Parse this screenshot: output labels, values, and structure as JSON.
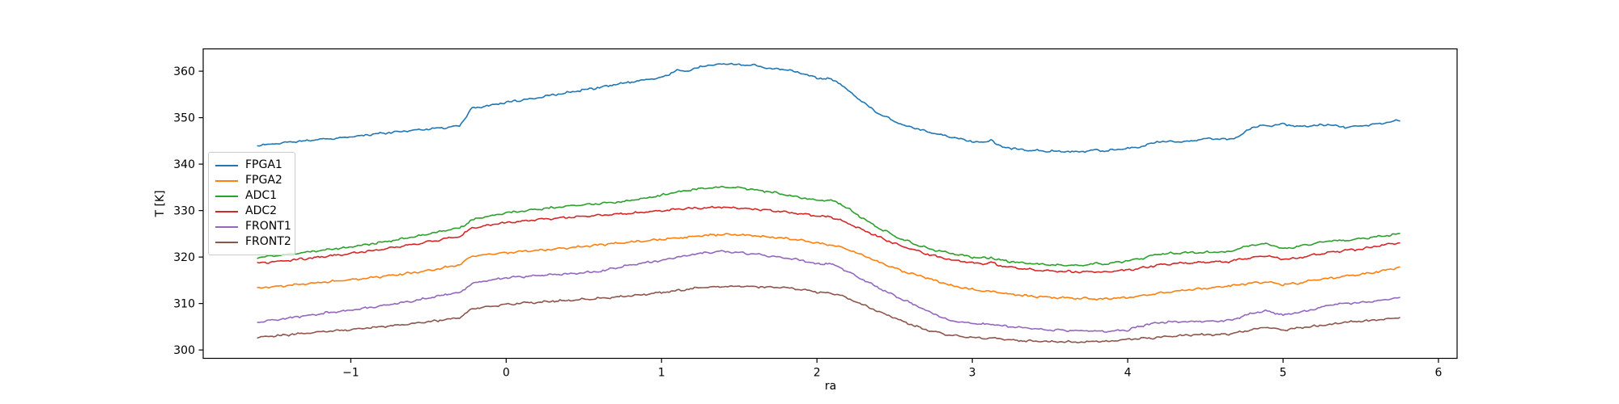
{
  "figure": {
    "background": "#ffffff"
  },
  "chart_data": {
    "type": "line",
    "title": "",
    "xlabel": "ra",
    "ylabel": "T [K]",
    "xlim": [
      -1.95,
      6.12
    ],
    "ylim": [
      298.2,
      364.8
    ],
    "xticks": [
      -1,
      0,
      1,
      2,
      3,
      4,
      5,
      6
    ],
    "yticks": [
      300,
      310,
      320,
      330,
      340,
      350,
      360
    ],
    "grid": false,
    "legend_position": "upper-left-inside",
    "noise_amplitude": 0.13,
    "x": [
      -1.6,
      -1.4,
      -1.2,
      -1.0,
      -0.8,
      -0.6,
      -0.45,
      -0.38,
      -0.3,
      -0.22,
      -0.1,
      0,
      0.15,
      0.3,
      0.45,
      0.6,
      0.75,
      0.9,
      1.0,
      1.1,
      1.15,
      1.2,
      1.3,
      1.4,
      1.5,
      1.6,
      1.7,
      1.8,
      1.9,
      2.0,
      2.08,
      2.15,
      2.25,
      2.4,
      2.55,
      2.7,
      2.85,
      3.0,
      3.08,
      3.12,
      3.17,
      3.3,
      3.5,
      3.7,
      3.8,
      3.85,
      4.0,
      4.1,
      4.2,
      4.35,
      4.5,
      4.65,
      4.72,
      4.8,
      4.9,
      5.0,
      5.1,
      5.2,
      5.3,
      5.4,
      5.5,
      5.6,
      5.75
    ],
    "series": [
      {
        "name": "FPGA1",
        "color": "#1f77b4",
        "values": [
          344.0,
          344.7,
          345.3,
          345.9,
          346.6,
          347.3,
          347.7,
          347.9,
          348.3,
          352.0,
          352.7,
          353.3,
          354.0,
          354.9,
          355.7,
          356.5,
          357.4,
          358.2,
          358.6,
          360.2,
          359.9,
          360.5,
          361.3,
          361.6,
          361.4,
          361.2,
          360.6,
          360.3,
          359.6,
          358.5,
          358.4,
          357.3,
          354.5,
          350.8,
          348.4,
          347.1,
          345.9,
          344.9,
          344.6,
          345.3,
          343.9,
          343.1,
          342.8,
          342.6,
          343.2,
          342.8,
          343.4,
          343.9,
          344.9,
          344.7,
          345.5,
          345.3,
          346.0,
          348.0,
          348.3,
          348.6,
          348.1,
          348.3,
          348.5,
          347.9,
          348.2,
          348.6,
          349.5
        ]
      },
      {
        "name": "FPGA2",
        "color": "#ff7f0e",
        "values": [
          313.3,
          313.9,
          314.5,
          315.1,
          315.8,
          316.6,
          317.4,
          317.9,
          318.3,
          320.2,
          320.6,
          320.9,
          321.3,
          321.7,
          322.1,
          322.6,
          323.1,
          323.5,
          323.8,
          324.1,
          324.2,
          324.4,
          324.7,
          324.9,
          324.8,
          324.6,
          324.3,
          324.0,
          323.6,
          323.0,
          322.6,
          322.2,
          321.0,
          318.9,
          317.0,
          315.6,
          314.0,
          313.0,
          312.7,
          312.6,
          312.4,
          311.8,
          311.3,
          311.1,
          311.0,
          311.0,
          311.3,
          311.7,
          312.2,
          312.8,
          313.3,
          313.8,
          314.1,
          314.4,
          314.7,
          314.1,
          314.4,
          315.0,
          315.4,
          315.9,
          316.3,
          316.8,
          317.8
        ]
      },
      {
        "name": "ADC1",
        "color": "#2ca02c",
        "values": [
          319.8,
          320.6,
          321.4,
          322.2,
          323.2,
          324.3,
          325.3,
          325.8,
          326.2,
          328.0,
          328.9,
          329.5,
          330.1,
          330.6,
          331.1,
          331.5,
          331.9,
          332.7,
          333.3,
          334.0,
          334.2,
          334.6,
          334.9,
          335.1,
          334.9,
          334.5,
          334.0,
          333.4,
          332.8,
          332.2,
          332.3,
          331.5,
          329.3,
          326.2,
          323.8,
          322.0,
          320.9,
          320.0,
          319.8,
          319.9,
          319.4,
          318.8,
          318.3,
          318.2,
          318.7,
          318.4,
          319.2,
          319.8,
          320.7,
          320.9,
          321.0,
          321.1,
          322.0,
          322.5,
          322.9,
          321.8,
          322.3,
          322.9,
          323.5,
          323.5,
          324.0,
          324.3,
          325.0
        ]
      },
      {
        "name": "ADC2",
        "color": "#d62728",
        "values": [
          318.6,
          319.3,
          320.0,
          320.8,
          321.7,
          322.7,
          323.6,
          324.0,
          324.4,
          326.2,
          326.9,
          327.4,
          327.9,
          328.3,
          328.7,
          329.0,
          329.3,
          329.7,
          330.0,
          330.3,
          330.4,
          330.5,
          330.6,
          330.7,
          330.5,
          330.3,
          330.0,
          329.7,
          329.3,
          328.9,
          328.7,
          328.0,
          326.5,
          324.3,
          322.3,
          320.7,
          319.5,
          318.7,
          318.5,
          318.9,
          318.2,
          317.6,
          317.0,
          316.8,
          316.9,
          316.8,
          317.2,
          317.7,
          318.3,
          318.7,
          318.9,
          319.0,
          319.5,
          319.9,
          320.3,
          319.5,
          319.8,
          320.5,
          321.0,
          321.4,
          321.7,
          322.3,
          323.1
        ]
      },
      {
        "name": "FRONT1",
        "color": "#9467bd",
        "values": [
          306.0,
          306.9,
          307.8,
          308.6,
          309.5,
          310.6,
          311.5,
          312.0,
          312.3,
          314.3,
          315.0,
          315.5,
          315.9,
          316.2,
          316.5,
          316.9,
          318.0,
          318.8,
          319.3,
          320.0,
          320.1,
          320.6,
          321.0,
          321.2,
          321.0,
          320.6,
          320.2,
          319.8,
          319.3,
          318.5,
          318.6,
          317.8,
          315.9,
          313.3,
          310.9,
          308.6,
          306.4,
          305.7,
          305.5,
          305.6,
          305.3,
          304.8,
          304.3,
          304.1,
          304.1,
          304.0,
          304.3,
          305.3,
          305.9,
          306.1,
          306.2,
          306.3,
          307.0,
          307.9,
          308.4,
          307.5,
          308.1,
          308.8,
          309.7,
          310.0,
          310.2,
          310.5,
          311.2
        ]
      },
      {
        "name": "FRONT2",
        "color": "#8c564b",
        "values": [
          302.7,
          303.3,
          303.9,
          304.4,
          305.0,
          305.7,
          306.3,
          306.6,
          306.9,
          308.8,
          309.4,
          309.8,
          310.2,
          310.5,
          310.8,
          311.1,
          311.5,
          312.0,
          312.4,
          312.8,
          312.9,
          313.2,
          313.5,
          313.7,
          313.7,
          313.6,
          313.5,
          313.4,
          313.0,
          312.5,
          312.3,
          311.8,
          310.4,
          308.2,
          306.2,
          304.4,
          303.2,
          302.7,
          302.5,
          302.6,
          302.4,
          302.0,
          301.8,
          301.7,
          301.9,
          301.8,
          302.3,
          302.5,
          302.7,
          303.1,
          303.3,
          303.4,
          303.8,
          304.4,
          304.9,
          304.3,
          304.7,
          305.1,
          305.5,
          306.0,
          306.2,
          306.4,
          307.0
        ]
      }
    ]
  }
}
